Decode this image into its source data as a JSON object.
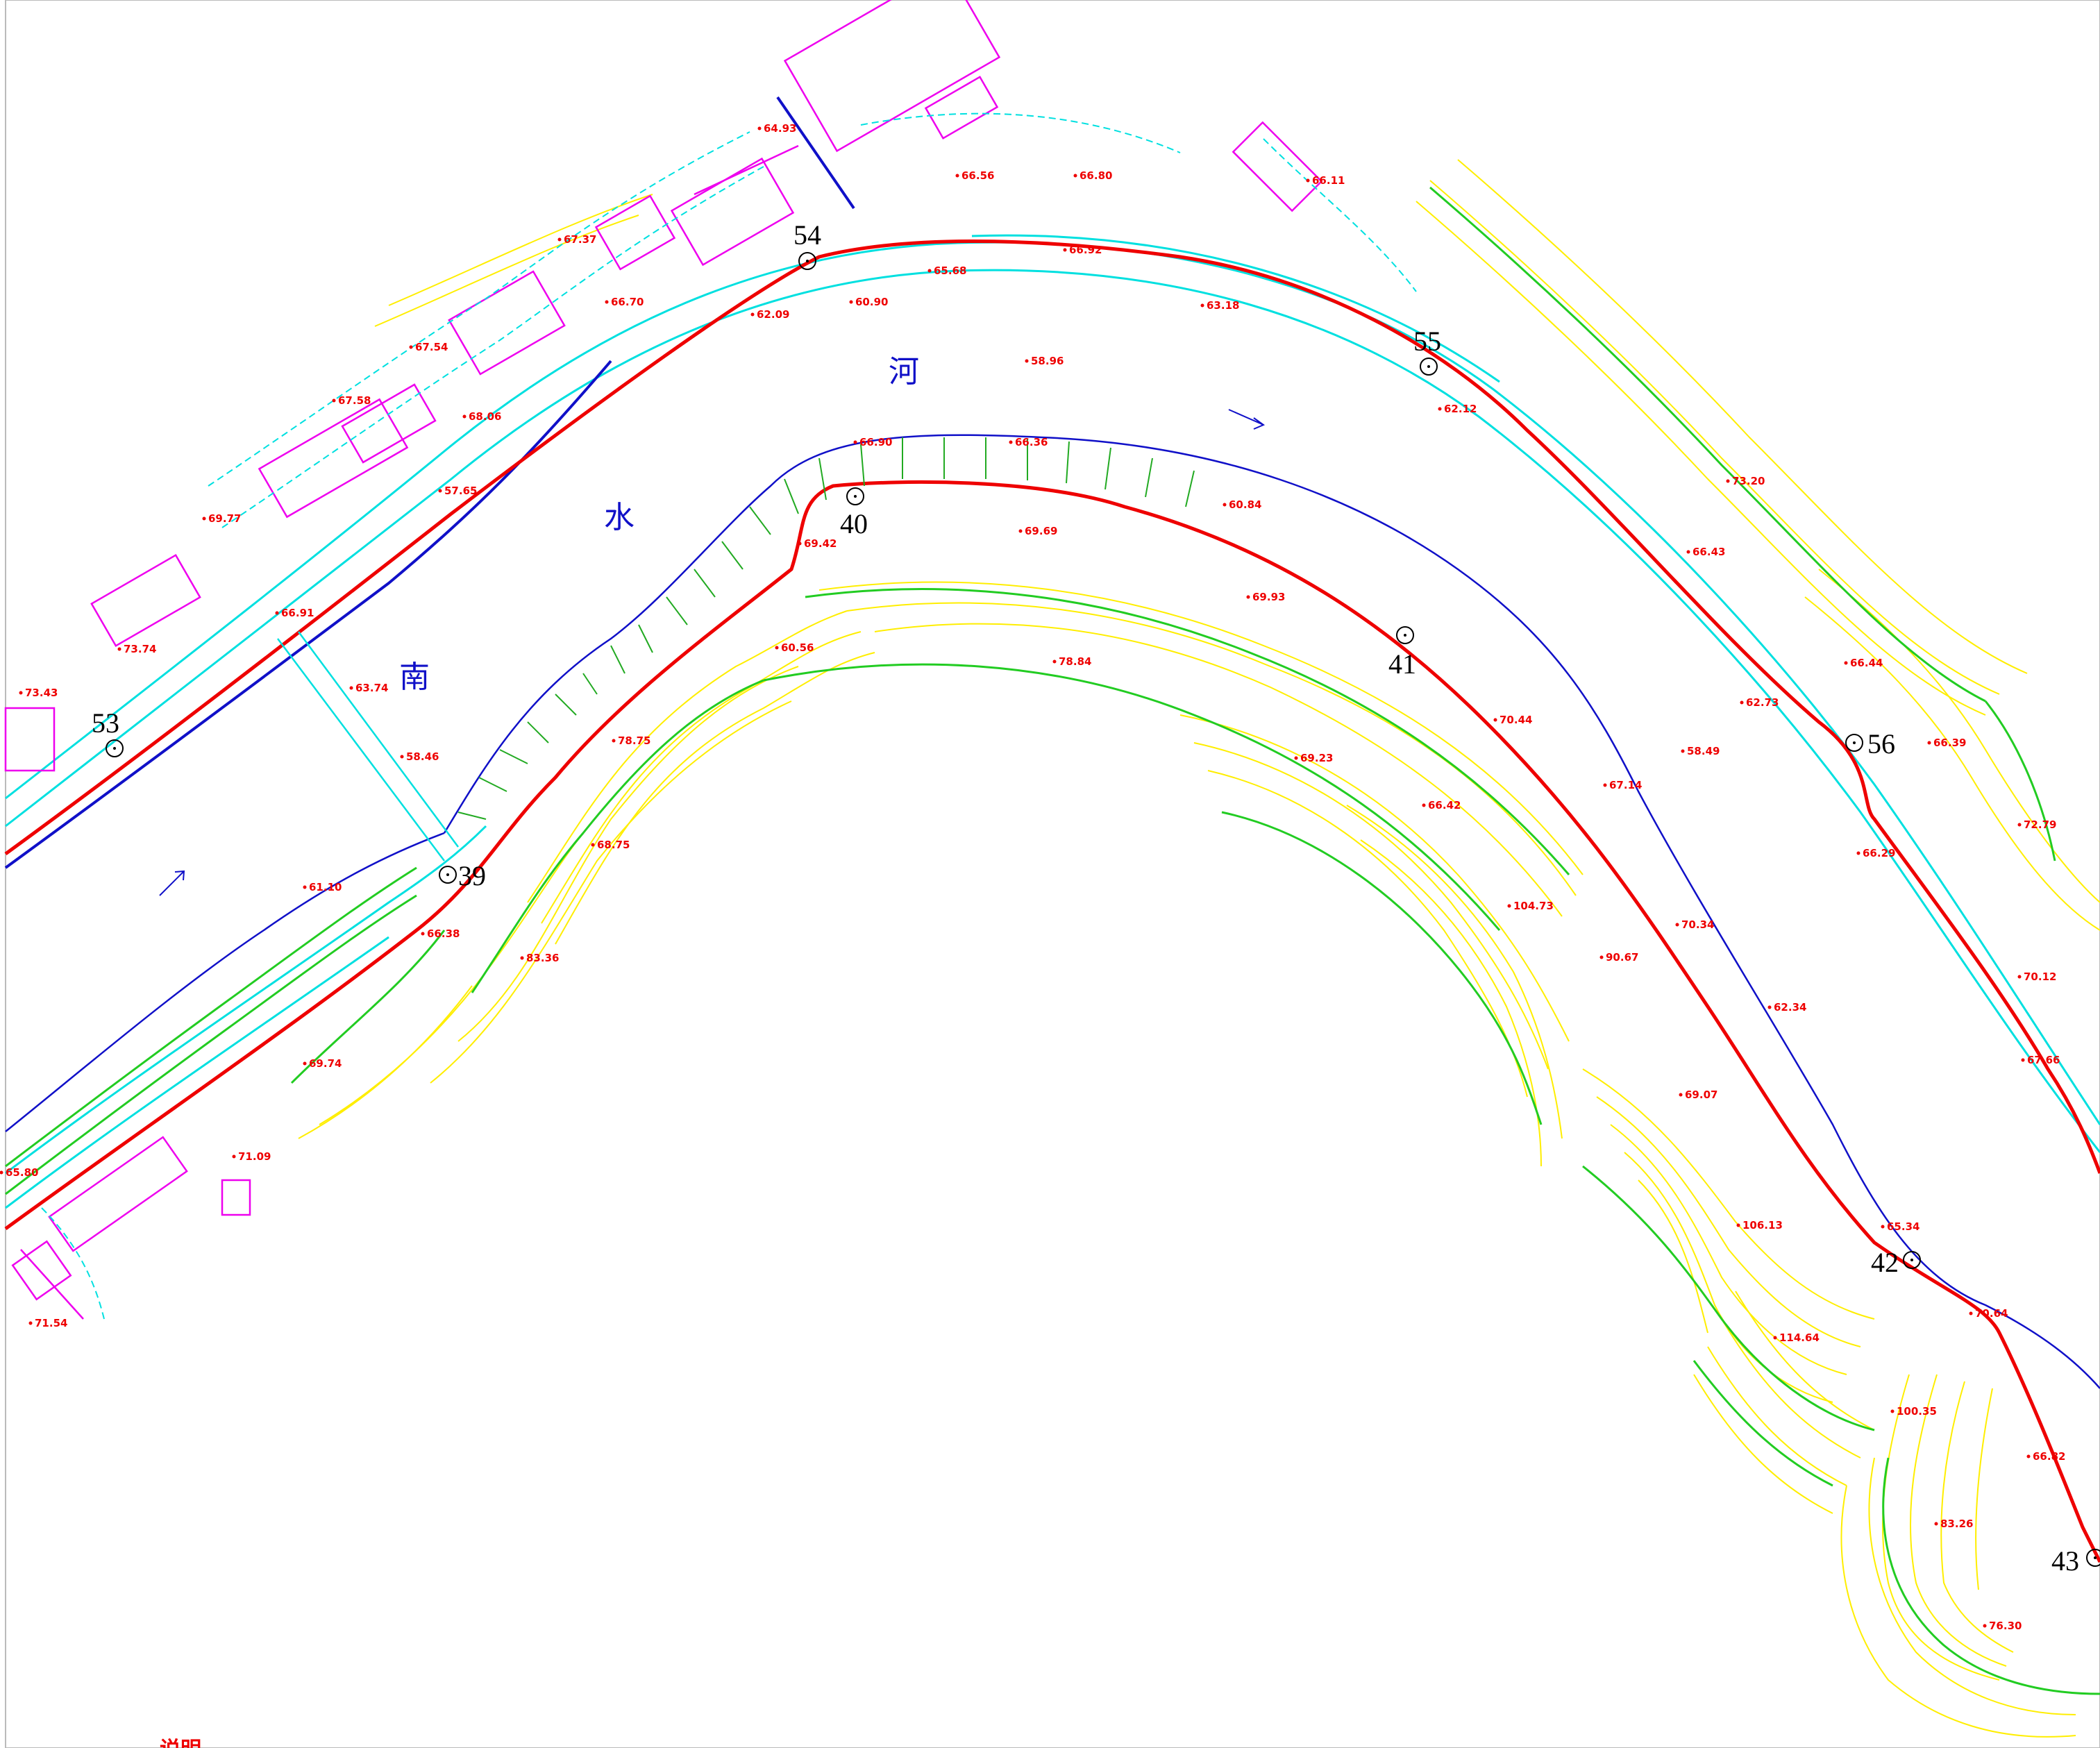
{
  "map": {
    "river_chars": [
      "南",
      "水",
      "河"
    ],
    "note_title": "说明",
    "colors": {
      "centerline": "#ee0000",
      "contour_major": "#22cc22",
      "contour_minor": "#ffee00",
      "bank": "#00e0e0",
      "waterline": "#1010c8",
      "building": "#ee00ee",
      "elevation_text": "#ee0000",
      "marker_text": "#000000"
    },
    "markers": [
      "39",
      "40",
      "41",
      "42",
      "43",
      "53",
      "54",
      "55",
      "56"
    ],
    "elevations": [
      "64.93",
      "66.56",
      "66.80",
      "66.11",
      "67.37",
      "66.92",
      "66.70",
      "65.68",
      "60.90",
      "63.18",
      "62.09",
      "58.96",
      "67.54",
      "67.58",
      "68.06",
      "62.12",
      "57.65",
      "69.77",
      "66.90",
      "66.36",
      "60.84",
      "69.69",
      "69.42",
      "73.20",
      "66.43",
      "69.93",
      "66.91",
      "73.74",
      "73.43",
      "60.56",
      "78.84",
      "66.44",
      "63.74",
      "62.73",
      "70.44",
      "58.49",
      "66.39",
      "78.75",
      "58.46",
      "69.23",
      "67.14",
      "72.79",
      "66.42",
      "66.29",
      "68.75",
      "61.10",
      "104.73",
      "70.34",
      "66.38",
      "83.36",
      "90.67",
      "70.12",
      "62.34",
      "69.74",
      "67.66",
      "69.07",
      "71.09",
      "65.80",
      "106.13",
      "65.34",
      "70.64",
      "114.64",
      "71.54",
      "100.35",
      "66.82",
      "83.26",
      "76.30"
    ]
  }
}
